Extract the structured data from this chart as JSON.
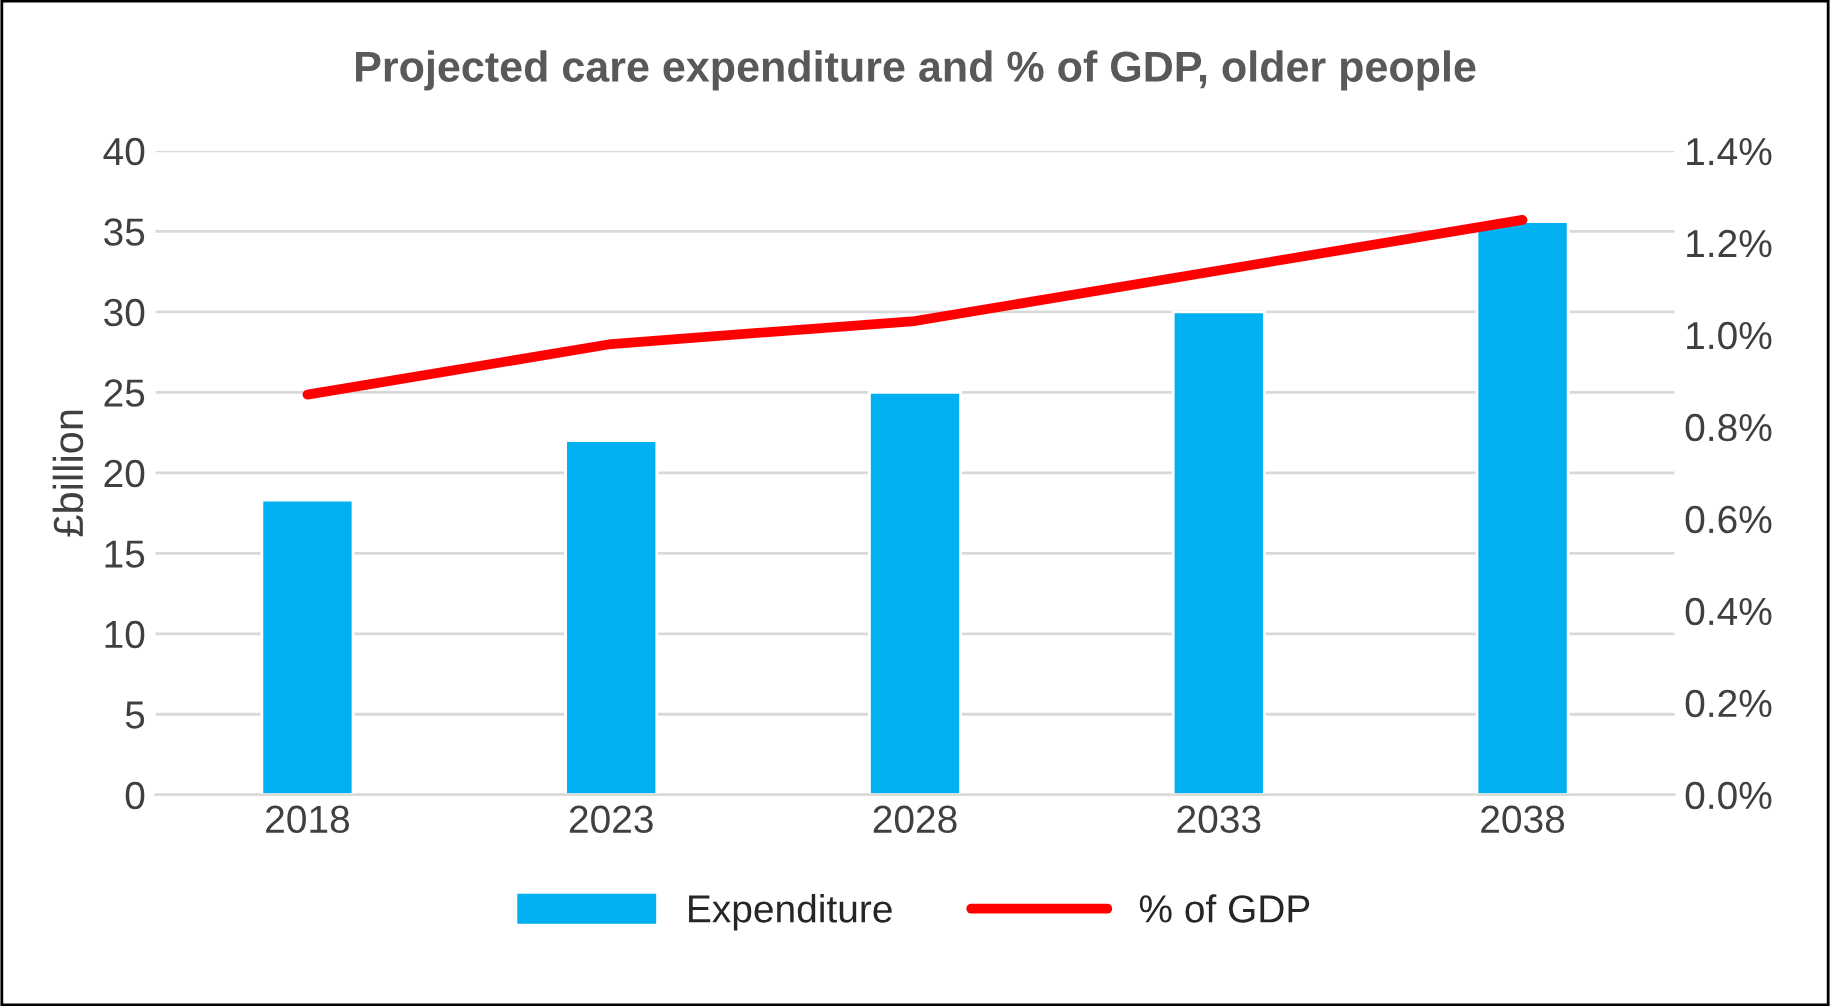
{
  "chart_data": {
    "type": "bar",
    "title": "Projected care expenditure and % of GDP, older people",
    "ylabel": "£billion",
    "categories": [
      "2018",
      "2023",
      "2028",
      "2033",
      "2038"
    ],
    "series": [
      {
        "name": "Expenditure",
        "color": "#00b0f0",
        "values": [
          18.3,
          22.0,
          25.0,
          30.0,
          35.6
        ]
      },
      {
        "name": "% of GDP",
        "type": "line",
        "axis": "y2",
        "color": "#ff0000",
        "values": [
          0.87,
          0.98,
          1.03,
          1.14,
          1.25
        ]
      }
    ],
    "ylim": [
      0,
      40
    ],
    "yticks": [
      0,
      5,
      10,
      15,
      20,
      25,
      30,
      35,
      40
    ],
    "y2lim": [
      0,
      1.4
    ],
    "y2ticks": [
      {
        "value": 0,
        "label": "0.0%"
      },
      {
        "value": 0.2,
        "label": "0.2%"
      },
      {
        "value": 0.4,
        "label": "0.4%"
      },
      {
        "value": 0.6,
        "label": "0.6%"
      },
      {
        "value": 0.8,
        "label": "0.8%"
      },
      {
        "value": 1.0,
        "label": "1.0%"
      },
      {
        "value": 1.2,
        "label": "1.2%"
      },
      {
        "value": 1.4,
        "label": "1.4%"
      }
    ],
    "grid": "y",
    "legend": "bottom",
    "marker": "none",
    "line_style": "solid"
  }
}
